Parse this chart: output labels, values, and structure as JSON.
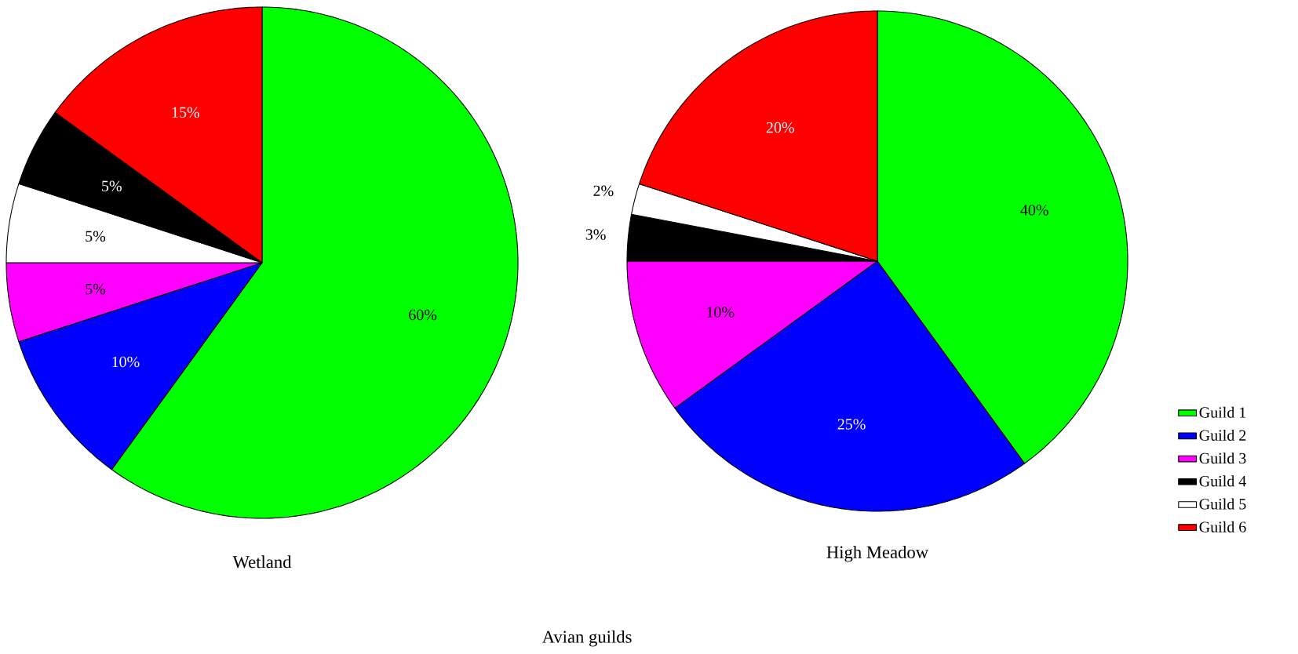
{
  "chart_data": [
    {
      "type": "pie",
      "title": "Wetland",
      "categories": [
        null,
        null,
        null,
        null,
        null,
        null
      ],
      "values": [
        60,
        10,
        5,
        5,
        5,
        15
      ],
      "value_labels": [
        "60%",
        "10%",
        "5%",
        "5%",
        "5%",
        "15%"
      ],
      "colors": [
        "#00ff00",
        "#0000ff",
        "#ff00ff",
        "#ffffff",
        "#000000",
        "#ff0000"
      ],
      "annotations": [
        "Avian guilds"
      ]
    },
    {
      "type": "pie",
      "title": "High Meadow",
      "categories": [
        "Guild 1",
        "Guild 2",
        "Guild 3",
        "Guild 4",
        "Guild 5",
        "Guild 6"
      ],
      "values": [
        40,
        25,
        10,
        3,
        2,
        20
      ],
      "value_labels": [
        "40%",
        "25%",
        "10%",
        "3%",
        "2%",
        "20%"
      ],
      "colors": [
        "#00ff00",
        "#0000ff",
        "#ff00ff",
        "#000000",
        "#ffffff",
        "#ff0000"
      ],
      "legend": "right"
    }
  ]
}
